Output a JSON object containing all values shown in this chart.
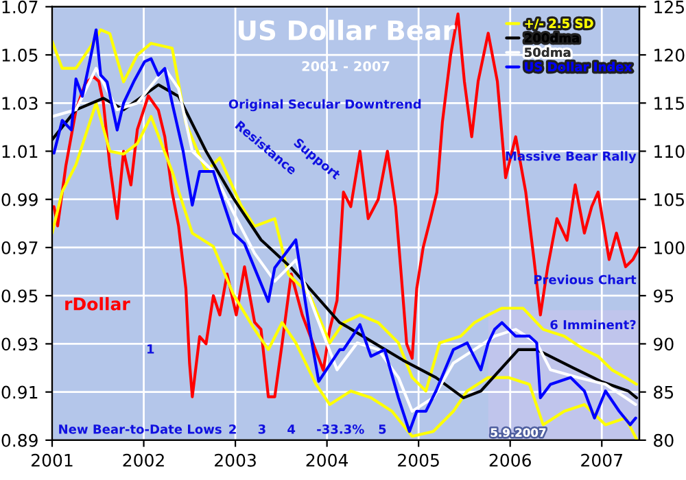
{
  "chart_data": {
    "type": "line",
    "title": "US Dollar Bear",
    "subtitle": "2001 - 2007",
    "xlim": [
      2001,
      2007.41
    ],
    "xticks": [
      {
        "value": 2001,
        "label": "2001"
      },
      {
        "value": 2002,
        "label": "2002"
      },
      {
        "value": 2003,
        "label": "2003"
      },
      {
        "value": 2004,
        "label": "2004"
      },
      {
        "value": 2005,
        "label": "2005"
      },
      {
        "value": 2006,
        "label": "2006"
      },
      {
        "value": 2007,
        "label": "2007"
      }
    ],
    "ylim": [
      0.89,
      1.07
    ],
    "yticks": [
      0.89,
      0.91,
      0.93,
      0.95,
      0.97,
      0.99,
      1.01,
      1.03,
      1.05,
      1.07
    ],
    "y2lim": [
      80,
      125
    ],
    "y2ticks": [
      80,
      85,
      90,
      95,
      100,
      105,
      110,
      115,
      120,
      125
    ],
    "grid": true,
    "legend": "top right",
    "line_style": "solid",
    "marker": "none",
    "bands": [
      {
        "axis": "x",
        "from": 2005.76,
        "to": 2007.41,
        "label": "5.9.2007",
        "color": "#c4c4ec"
      }
    ],
    "annotations": [
      "Original Secular Downtrend",
      "Resistance",
      "Support",
      "New Bear-to-Date Lows",
      "Massive Bear Rally",
      "Previous Chart",
      "-33.3%",
      "6 Imminent?",
      "1",
      "2",
      "3",
      "4",
      "5"
    ],
    "series": [
      {
        "name": "rDollar",
        "color": "#ff0000",
        "axis": "y",
        "x": [
          2001.02,
          2001.06,
          2001.15,
          2001.26,
          2001.36,
          2001.45,
          2001.51,
          2001.56,
          2001.63,
          2001.71,
          2001.78,
          2001.86,
          2001.93,
          2002.05,
          2002.16,
          2002.23,
          2002.31,
          2002.38,
          2002.46,
          2002.5,
          2002.53,
          2002.61,
          2002.68,
          2002.76,
          2002.83,
          2002.91,
          2003.01,
          2003.1,
          2003.21,
          2003.28,
          2003.36,
          2003.43,
          2003.51,
          2003.61,
          2003.73,
          2003.85,
          2003.96,
          2004.03,
          2004.11,
          2004.18,
          2004.26,
          2004.36,
          2004.45,
          2004.56,
          2004.66,
          2004.75,
          2004.81,
          2004.87,
          2004.93,
          2004.98,
          2005.05,
          2005.13,
          2005.2,
          2005.26,
          2005.35,
          2005.43,
          2005.5,
          2005.58,
          2005.65,
          2005.76,
          2005.86,
          2005.95,
          2006.06,
          2006.17,
          2006.26,
          2006.33,
          2006.41,
          2006.51,
          2006.62,
          2006.71,
          2006.81,
          2006.89,
          2006.96,
          2007.08,
          2007.16,
          2007.26,
          2007.34,
          2007.41
        ],
        "values": [
          0.987,
          0.979,
          1.004,
          1.027,
          1.038,
          1.041,
          1.039,
          1.03,
          1.004,
          0.982,
          1.01,
          0.996,
          1.019,
          1.033,
          1.027,
          1.016,
          0.993,
          0.979,
          0.953,
          0.922,
          0.908,
          0.933,
          0.93,
          0.95,
          0.942,
          0.959,
          0.942,
          0.962,
          0.939,
          0.936,
          0.908,
          0.908,
          0.93,
          0.959,
          0.942,
          0.93,
          0.919,
          0.936,
          0.948,
          0.993,
          0.987,
          1.01,
          0.982,
          0.99,
          1.01,
          0.987,
          0.959,
          0.93,
          0.924,
          0.953,
          0.97,
          0.982,
          0.993,
          1.022,
          1.05,
          1.067,
          1.039,
          1.016,
          1.039,
          1.059,
          1.039,
          0.999,
          1.016,
          0.993,
          0.965,
          0.942,
          0.962,
          0.982,
          0.973,
          0.996,
          0.976,
          0.987,
          0.993,
          0.965,
          0.976,
          0.962,
          0.965,
          0.97
        ]
      },
      {
        "name": "+/- 2.5 SD",
        "color": "#ffff00",
        "axis": "y2",
        "x": [
          2001.0,
          2001.11,
          2001.26,
          2001.41,
          2001.53,
          2001.63,
          2001.78,
          2001.93,
          2002.08,
          2002.31,
          2002.46,
          2002.68,
          2002.83,
          2003.06,
          2003.21,
          2003.43,
          2003.58,
          2003.81,
          2004.03,
          2004.18,
          2004.36,
          2004.56,
          2004.78,
          2004.93,
          2005.08,
          2005.23,
          2005.46,
          2005.61,
          2005.76,
          2005.91,
          2006.14,
          2006.36,
          2006.59,
          2006.81,
          2006.96,
          2007.11,
          2007.26,
          2007.38
        ],
        "values": [
          121.4,
          118.6,
          118.6,
          120.7,
          122.6,
          122.2,
          117.2,
          120.0,
          121.2,
          120.7,
          112.9,
          107.9,
          109.3,
          104.4,
          102.2,
          103.0,
          97.2,
          95.1,
          90.1,
          92.2,
          93.0,
          92.2,
          90.1,
          86.5,
          85.1,
          90.1,
          90.8,
          92.2,
          93.0,
          93.7,
          93.7,
          91.5,
          90.8,
          89.4,
          88.7,
          87.3,
          86.5,
          85.8
        ]
      },
      {
        "color": "#ffff00",
        "axis": "y2",
        "x": [
          2001.0,
          2001.11,
          2001.26,
          2001.48,
          2001.63,
          2001.78,
          2001.93,
          2002.08,
          2002.31,
          2002.53,
          2002.76,
          2002.98,
          2003.21,
          2003.36,
          2003.51,
          2003.66,
          2003.88,
          2004.03,
          2004.26,
          2004.48,
          2004.71,
          2004.93,
          2005.16,
          2005.38,
          2005.53,
          2005.76,
          2005.98,
          2006.21,
          2006.36,
          2006.59,
          2006.81,
          2007.04,
          2007.26,
          2007.38
        ],
        "values": [
          101.5,
          105.8,
          108.6,
          115.0,
          110.0,
          109.7,
          110.8,
          113.6,
          107.9,
          101.5,
          100.1,
          95.1,
          91.5,
          89.4,
          92.2,
          90.1,
          85.8,
          83.7,
          85.1,
          84.4,
          83.0,
          80.4,
          80.9,
          83.0,
          85.1,
          86.5,
          86.5,
          85.8,
          81.6,
          83.0,
          83.7,
          81.6,
          82.3,
          80.1
        ]
      },
      {
        "name": "200dma",
        "color": "#000000",
        "axis": "y2",
        "x": [
          2001.0,
          2001.26,
          2001.56,
          2001.78,
          2002.16,
          2002.38,
          2002.68,
          2002.98,
          2003.28,
          2003.61,
          2004.14,
          2004.18,
          2004.83,
          2005.19,
          2005.49,
          2005.68,
          2006.09,
          2006.29,
          2006.69,
          2006.99,
          2007.29,
          2007.38
        ],
        "values": [
          111.2,
          114.3,
          115.5,
          114.3,
          116.9,
          115.7,
          110.0,
          105.1,
          100.8,
          97.9,
          92.2,
          92.0,
          88.3,
          86.5,
          84.4,
          85.1,
          89.4,
          89.4,
          87.5,
          86.1,
          85.1,
          84.4
        ]
      },
      {
        "name": "50dma",
        "color": "#ffffff",
        "axis": "y2",
        "x": [
          2001.0,
          2001.26,
          2001.48,
          2001.71,
          2001.93,
          2002.23,
          2002.38,
          2002.53,
          2002.76,
          2002.98,
          2003.21,
          2003.43,
          2003.66,
          2003.88,
          2004.11,
          2004.33,
          2004.56,
          2004.78,
          2004.93,
          2005.16,
          2005.38,
          2005.61,
          2005.83,
          2006.06,
          2006.29,
          2006.44,
          2006.74,
          2007.04,
          2007.26,
          2007.37
        ],
        "values": [
          113.6,
          114.3,
          118.6,
          114.3,
          115.0,
          118.6,
          116.5,
          110.0,
          107.9,
          103.6,
          99.4,
          96.5,
          98.7,
          93.0,
          87.3,
          90.1,
          89.4,
          86.5,
          83.0,
          84.4,
          88.0,
          89.4,
          90.8,
          91.5,
          90.1,
          87.3,
          86.5,
          85.8,
          84.4,
          83.7
        ]
      },
      {
        "name": "US Dollar Index",
        "color": "#0000ff",
        "axis": "y2",
        "x": [
          2001.02,
          2001.11,
          2001.21,
          2001.26,
          2001.33,
          2001.41,
          2001.48,
          2001.53,
          2001.6,
          2001.71,
          2001.78,
          2001.89,
          2002.01,
          2002.08,
          2002.16,
          2002.23,
          2002.31,
          2002.43,
          2002.53,
          2002.61,
          2002.76,
          2002.83,
          2002.98,
          2003.1,
          2003.36,
          2003.43,
          2003.66,
          2003.81,
          2003.91,
          2004.14,
          2004.18,
          2004.3,
          2004.36,
          2004.48,
          2004.63,
          2004.78,
          2004.9,
          2004.98,
          2005.08,
          2005.19,
          2005.38,
          2005.53,
          2005.68,
          2005.76,
          2005.83,
          2005.91,
          2006.06,
          2006.21,
          2006.29,
          2006.33,
          2006.44,
          2006.66,
          2006.81,
          2006.92,
          2007.04,
          2007.19,
          2007.31,
          2007.37
        ],
        "values": [
          109.8,
          113.2,
          112.2,
          117.5,
          115.7,
          119.3,
          122.6,
          117.9,
          117.2,
          112.2,
          115.0,
          117.2,
          119.3,
          119.6,
          117.9,
          118.6,
          115.0,
          110.0,
          104.4,
          107.9,
          107.9,
          105.8,
          101.5,
          100.4,
          94.4,
          97.9,
          100.8,
          91.5,
          86.1,
          89.4,
          89.4,
          91.1,
          92.0,
          88.7,
          89.4,
          84.4,
          80.9,
          83.0,
          83.0,
          85.1,
          89.4,
          90.1,
          87.3,
          90.1,
          91.5,
          92.2,
          90.8,
          90.8,
          90.1,
          84.4,
          85.8,
          86.5,
          85.1,
          82.3,
          85.1,
          83.0,
          81.6,
          82.3
        ]
      }
    ]
  }
}
